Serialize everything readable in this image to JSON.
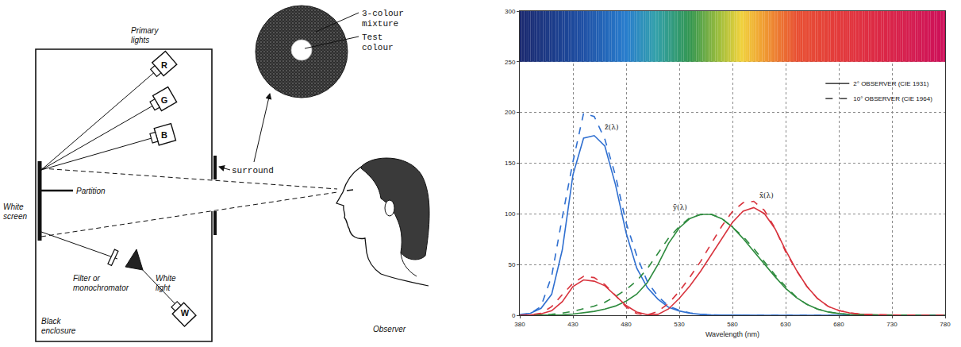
{
  "diagram": {
    "primary_lights": {
      "label": "Primary lights",
      "lamps": [
        "R",
        "G",
        "B"
      ]
    },
    "white_light": {
      "label": "White light",
      "lamp": "W"
    },
    "screen": "White screen",
    "partition": "Partition",
    "filter": "Filter or monochromator",
    "enclosure": "Black enclosure",
    "surround": "surround",
    "observer": "Observer",
    "field": {
      "mixture": "3-colour mixture",
      "test": "Test colour"
    }
  },
  "chart_data": {
    "type": "line",
    "x_label": "Wavelength (nm)",
    "x": [
      380,
      390,
      400,
      410,
      420,
      430,
      440,
      450,
      460,
      470,
      480,
      490,
      500,
      510,
      520,
      530,
      540,
      550,
      560,
      570,
      580,
      590,
      600,
      610,
      620,
      630,
      640,
      650,
      660,
      670,
      680,
      690,
      700,
      710,
      720,
      730,
      740,
      750,
      760,
      770,
      780
    ],
    "xlim": [
      380,
      780
    ],
    "xticks": [
      380,
      430,
      480,
      530,
      580,
      630,
      680,
      730,
      780
    ],
    "ylim": [
      0,
      300
    ],
    "yticks": [
      0,
      50,
      100,
      150,
      200,
      250,
      300
    ],
    "grid": true,
    "legend": "upper right",
    "spectrum_band": [
      250,
      300
    ],
    "annotations": [
      {
        "text": "z̄(λ)",
        "x": 458,
        "y": 180
      },
      {
        "text": "ȳ(λ)",
        "x": 522,
        "y": 101
      },
      {
        "text": "x̄(λ)",
        "x": 604,
        "y": 113
      }
    ],
    "series": [
      {
        "name": "2° OBSERVER (CIE 1931)",
        "color": "#2f6fd0",
        "line_style": "solid",
        "values": [
          0.7,
          2,
          6.8,
          20.7,
          64.6,
          138.6,
          174.7,
          177.2,
          166.9,
          128.8,
          81.3,
          46.5,
          27.2,
          15.8,
          7.8,
          4.2,
          2,
          0.9,
          0.4,
          0.2,
          0.2,
          0.1,
          0.1,
          0,
          0,
          0,
          0,
          0,
          0,
          0,
          0,
          0,
          0,
          0,
          0,
          0,
          0,
          0,
          0,
          0,
          0
        ]
      },
      {
        "name": "2° OBSERVER (CIE 1931)",
        "color": "#2e8b3e",
        "line_style": "solid",
        "values": [
          0,
          0,
          0,
          0.1,
          0.4,
          1.2,
          2.3,
          3.8,
          6,
          9.1,
          13.9,
          20.8,
          32.3,
          50.3,
          71,
          86.2,
          95.4,
          99.5,
          99.5,
          95.2,
          87,
          75.7,
          63.1,
          50.3,
          38.1,
          26.5,
          17.5,
          10.7,
          6.1,
          3.2,
          1.7,
          0.8,
          0.4,
          0.2,
          0.1,
          0,
          0,
          0,
          0,
          0,
          0
        ]
      },
      {
        "name": "2° OBSERVER (CIE 1931)",
        "color": "#d8343e",
        "line_style": "solid",
        "values": [
          0.1,
          0.4,
          1.4,
          4.4,
          13.4,
          28.4,
          34.8,
          33.6,
          29.1,
          19.5,
          9.6,
          3.2,
          0.5,
          0.9,
          6.3,
          16.6,
          29,
          43.3,
          59.5,
          76.2,
          91.6,
          102.6,
          106.2,
          100.3,
          85.4,
          64.2,
          44.8,
          28.4,
          16.5,
          8.7,
          4.7,
          2.3,
          1.1,
          0.6,
          0.3,
          0.1,
          0.1,
          0,
          0,
          0,
          0
        ]
      },
      {
        "name": "10° OBSERVER (CIE 1964)",
        "color": "#2f6fd0",
        "line_style": "dashed",
        "values": [
          0.1,
          1.7,
          8.8,
          38.7,
          96.7,
          151.4,
          199.2,
          196.1,
          173.6,
          137.7,
          91.2,
          58.7,
          33,
          18.5,
          9,
          4.9,
          2.3,
          0.9,
          0.3,
          0.1,
          0,
          0,
          0,
          0,
          0,
          0,
          0,
          0,
          0,
          0,
          0,
          0,
          0,
          0,
          0,
          0,
          0,
          0,
          0,
          0,
          0
        ]
      },
      {
        "name": "10° OBSERVER (CIE 1964)",
        "color": "#2e8b3e",
        "line_style": "dashed",
        "values": [
          0,
          0,
          0.2,
          0.9,
          2.1,
          3.9,
          6.2,
          9,
          12.8,
          18.5,
          25.4,
          33.9,
          46.1,
          60.7,
          76.2,
          87.5,
          96.2,
          99.2,
          99.7,
          95.6,
          86.9,
          77.7,
          65.8,
          52.8,
          39.8,
          28.4,
          17.9,
          10.7,
          6.1,
          3.2,
          1.7,
          0.8,
          0.4,
          0.2,
          0.1,
          0.1,
          0,
          0,
          0,
          0,
          0
        ]
      },
      {
        "name": "10° OBSERVER (CIE 1964)",
        "color": "#d8343e",
        "line_style": "dashed",
        "values": [
          0,
          0.4,
          1.9,
          8.5,
          20.4,
          31.5,
          38.4,
          37.1,
          30.2,
          19.6,
          8.1,
          1.6,
          0.4,
          3.8,
          11.8,
          23.6,
          37.7,
          53,
          70.5,
          87.9,
          102.3,
          111,
          112.4,
          103.5,
          85.9,
          62.6,
          44.4,
          28.4,
          16.5,
          8.7,
          4.7,
          2.3,
          1.1,
          0.6,
          0.3,
          0.1,
          0.1,
          0,
          0,
          0,
          0
        ]
      }
    ]
  }
}
